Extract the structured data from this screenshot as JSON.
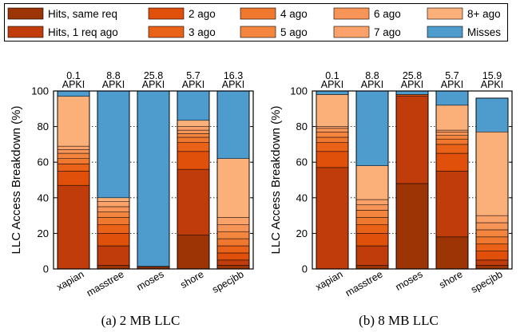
{
  "legend": {
    "items": [
      {
        "label": "Hits, same req",
        "color": "#9c3406"
      },
      {
        "label": "2 ago",
        "color": "#e0500a"
      },
      {
        "label": "4 ago",
        "color": "#f0782e"
      },
      {
        "label": "6 ago",
        "color": "#f79558"
      },
      {
        "label": "8+ ago",
        "color": "#fbb07a"
      },
      {
        "label": "Hits, 1 req ago",
        "color": "#c03c0b"
      },
      {
        "label": "3 ago",
        "color": "#ea6118"
      },
      {
        "label": "5 ago",
        "color": "#f4853f"
      },
      {
        "label": "7 ago",
        "color": "#faa26a"
      },
      {
        "label": "Misses",
        "color": "#4e9ccd"
      }
    ]
  },
  "chart_data": [
    {
      "type": "bar",
      "stacked": true,
      "caption": "(a) 2 MB LLC",
      "ylabel": "LLC Access Breakdown (%)",
      "ylim": [
        0,
        100
      ],
      "yticks": [
        "0",
        "20",
        "40",
        "60",
        "80",
        "100"
      ],
      "grid": "horizontal dotted",
      "categories": [
        "xapian",
        "masstree",
        "moses",
        "shore",
        "specjbb"
      ],
      "apki_values": [
        "0.1",
        "8.8",
        "25.8",
        "5.7",
        "16.3"
      ],
      "apki_unit": "APKI",
      "series": [
        {
          "name": "Hits, same req",
          "values": [
            0,
            2,
            1,
            19,
            2
          ]
        },
        {
          "name": "Hits, 1 req ago",
          "values": [
            47,
            11,
            0.5,
            37,
            3
          ]
        },
        {
          "name": "2 ago",
          "values": [
            8,
            7,
            0,
            10,
            4
          ]
        },
        {
          "name": "3 ago",
          "values": [
            4,
            5,
            0,
            5,
            4
          ]
        },
        {
          "name": "4 ago",
          "values": [
            3,
            4,
            0,
            3,
            4
          ]
        },
        {
          "name": "5 ago",
          "values": [
            3,
            3,
            0,
            2,
            4
          ]
        },
        {
          "name": "6 ago",
          "values": [
            2,
            3,
            0,
            2,
            4
          ]
        },
        {
          "name": "7 ago",
          "values": [
            2,
            3,
            0,
            2,
            4
          ]
        },
        {
          "name": "8+ ago",
          "values": [
            28,
            2,
            0,
            3.5,
            33
          ]
        },
        {
          "name": "Misses",
          "values": [
            3,
            60,
            98.5,
            16.5,
            38
          ]
        }
      ]
    },
    {
      "type": "bar",
      "stacked": true,
      "caption": "(b) 8 MB LLC",
      "ylabel": "LLC Access Breakdown (%)",
      "ylim": [
        0,
        100
      ],
      "yticks": [
        "0",
        "20",
        "40",
        "60",
        "80",
        "100"
      ],
      "grid": "horizontal dotted",
      "categories": [
        "xapian",
        "masstree",
        "moses",
        "shore",
        "specjbb"
      ],
      "apki_values": [
        "0.1",
        "8.8",
        "25.8",
        "5.7",
        "15.9"
      ],
      "apki_unit": "APKI",
      "series": [
        {
          "name": "Hits, same req",
          "values": [
            0,
            2,
            48,
            18,
            2
          ]
        },
        {
          "name": "Hits, 1 req ago",
          "values": [
            57,
            11,
            49,
            37,
            3
          ]
        },
        {
          "name": "2 ago",
          "values": [
            9,
            7,
            1,
            10,
            5
          ]
        },
        {
          "name": "3 ago",
          "values": [
            5,
            5,
            0,
            5,
            4
          ]
        },
        {
          "name": "4 ago",
          "values": [
            3,
            4,
            0,
            3,
            4
          ]
        },
        {
          "name": "5 ago",
          "values": [
            3,
            4,
            0,
            2,
            4
          ]
        },
        {
          "name": "6 ago",
          "values": [
            2,
            3,
            0,
            2,
            4
          ]
        },
        {
          "name": "7 ago",
          "values": [
            1,
            3,
            0,
            1,
            4
          ]
        },
        {
          "name": "8+ ago",
          "values": [
            18,
            19,
            0,
            14,
            47
          ]
        },
        {
          "name": "Misses",
          "values": [
            2,
            42,
            2,
            8,
            19
          ]
        }
      ]
    }
  ]
}
